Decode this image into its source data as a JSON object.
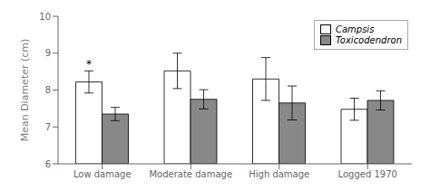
{
  "chart_data": {
    "type": "bar",
    "categories": [
      "Low damage",
      "Moderate damage",
      "High damage",
      "Logged 1970"
    ],
    "series": [
      {
        "name": "Campsis",
        "color": "#ffffff",
        "values": [
          8.22,
          8.52,
          8.3,
          7.48
        ],
        "errors": [
          0.3,
          0.48,
          0.58,
          0.3
        ]
      },
      {
        "name": "Toxicodendron",
        "color": "#888888",
        "values": [
          7.35,
          7.75,
          7.65,
          7.72
        ],
        "errors": [
          0.18,
          0.26,
          0.46,
          0.26
        ]
      }
    ],
    "ylabel": "Mean Diameter (cm)",
    "ylim": [
      6,
      10
    ],
    "yticks": [
      6,
      7,
      8,
      9,
      10
    ],
    "grid": false,
    "legend": "upper right",
    "annotations": [
      {
        "text": "*",
        "category": "Low damage",
        "series": "Campsis"
      }
    ]
  }
}
